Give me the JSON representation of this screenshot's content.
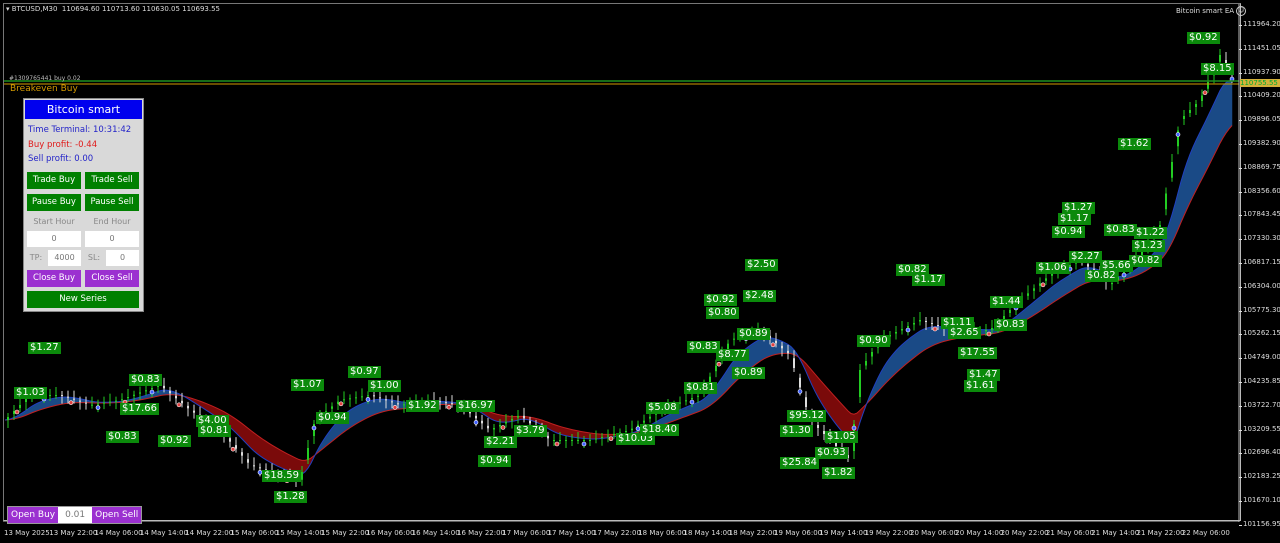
{
  "header": {
    "symbol": "BTCUSD,M30",
    "ohlc": "110694.60 110713.60 110630.05 110693.55",
    "ea_name": "Bitcoin smart EA",
    "ea_icon": "smiley-icon"
  },
  "chart": {
    "order_label": "#1309765441 buy 0.02",
    "breakeven_label": "Breakeven Buy",
    "current_price": "110755.55",
    "colors": {
      "background": "#000000",
      "bull_cloud": "#1a4a86",
      "bear_cloud": "#7a0a0a",
      "candles": "#22cc22",
      "tags": "#0b8a0b",
      "breakeven": "#d49a00",
      "order_line": "#1f8f1f"
    },
    "price_axis": [
      "111964.20",
      "111451.05",
      "110937.90",
      "110409.20",
      "109896.05",
      "109382.90",
      "108869.75",
      "108356.60",
      "107843.45",
      "107330.30",
      "106817.15",
      "106304.00",
      "105775.30",
      "105262.15",
      "104749.00",
      "104235.85",
      "103722.70",
      "103209.55",
      "102696.40",
      "102183.25",
      "101670.10",
      "101156.95"
    ],
    "time_axis": [
      "13 May 2025",
      "13 May 22:00",
      "14 May 06:00",
      "14 May 14:00",
      "14 May 22:00",
      "15 May 06:00",
      "15 May 14:00",
      "15 May 22:00",
      "16 May 06:00",
      "16 May 14:00",
      "16 May 22:00",
      "17 May 06:00",
      "17 May 14:00",
      "17 May 22:00",
      "18 May 06:00",
      "18 May 14:00",
      "18 May 22:00",
      "19 May 06:00",
      "19 May 14:00",
      "19 May 22:00",
      "20 May 06:00",
      "20 May 14:00",
      "20 May 22:00",
      "21 May 06:00",
      "21 May 14:00",
      "21 May 22:00",
      "22 May 06:00"
    ],
    "profit_tags": [
      "$1.27",
      "$1.03",
      "$0.83",
      "$17.66",
      "$0.83",
      "$0.92",
      "$4.00",
      "$0.81",
      "$18.59",
      "$1.28",
      "$1.07",
      "$0.97",
      "$0.94",
      "$1.00",
      "$1.92",
      "$16.97",
      "$2.21",
      "$0.94",
      "$3.79",
      "$10.03",
      "$18.40",
      "$5.08",
      "$0.81",
      "$0.83",
      "$0.92",
      "$0.80",
      "$2.50",
      "$2.48",
      "$8.77",
      "$0.89",
      "$0.89",
      "$95.12",
      "$1.30",
      "$1.05",
      "$0.93",
      "$25.84",
      "$1.82",
      "$0.90",
      "$0.82",
      "$1.17",
      "$1.11",
      "$2.65",
      "$17.55",
      "$1.47",
      "$1.61",
      "$1.44",
      "$0.83",
      "$1.06",
      "$0.94",
      "$1.17",
      "$1.27",
      "$2.27",
      "$0.83",
      "$1.22",
      "$1.23",
      "$0.82",
      "$5.66",
      "$0.82",
      "$1.62",
      "$0.92",
      "$8.15"
    ]
  },
  "panel": {
    "title": "Bitcoin smart",
    "time_terminal": "Time Terminal: 10:31:42",
    "buy_profit": "Buy profit: -0.44",
    "sell_profit": "Sell profit: 0.00",
    "trade_buy": "Trade Buy",
    "trade_sell": "Trade Sell",
    "pause_buy": "Pause Buy",
    "pause_sell": "Pause Sell",
    "start_hour_label": "Start Hour",
    "end_hour_label": "End Hour",
    "start_hour": "0",
    "end_hour": "0",
    "tp_label": "TP:",
    "tp": "4000",
    "sl_label": "SL:",
    "sl": "0",
    "close_buy": "Close Buy",
    "close_sell": "Close Sell",
    "new_series": "New Series"
  },
  "quick_trade": {
    "open_buy": "Open Buy",
    "lot": "0.01",
    "open_sell": "Open Sell"
  }
}
